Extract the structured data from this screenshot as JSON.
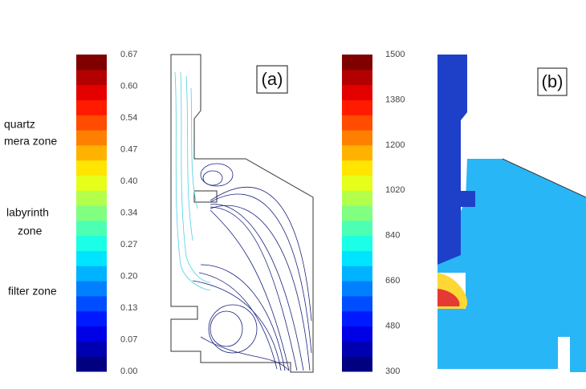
{
  "zone_labels": [
    [
      "quartz",
      "mera zone"
    ],
    [
      "labyrinth",
      "zone"
    ],
    [
      "filter zone"
    ]
  ],
  "colorbar_a": {
    "ticks": [
      "0.67",
      "0.60",
      "0.54",
      "0.47",
      "0.40",
      "0.34",
      "0.27",
      "0.20",
      "0.13",
      "0.07",
      "0.00"
    ]
  },
  "colorbar_b": {
    "ticks": [
      "1500",
      "1380",
      "1200",
      "1020",
      "840",
      "660",
      "480",
      "300"
    ]
  },
  "panel_a_label": "(a)",
  "panel_b_label": "(b)"
}
